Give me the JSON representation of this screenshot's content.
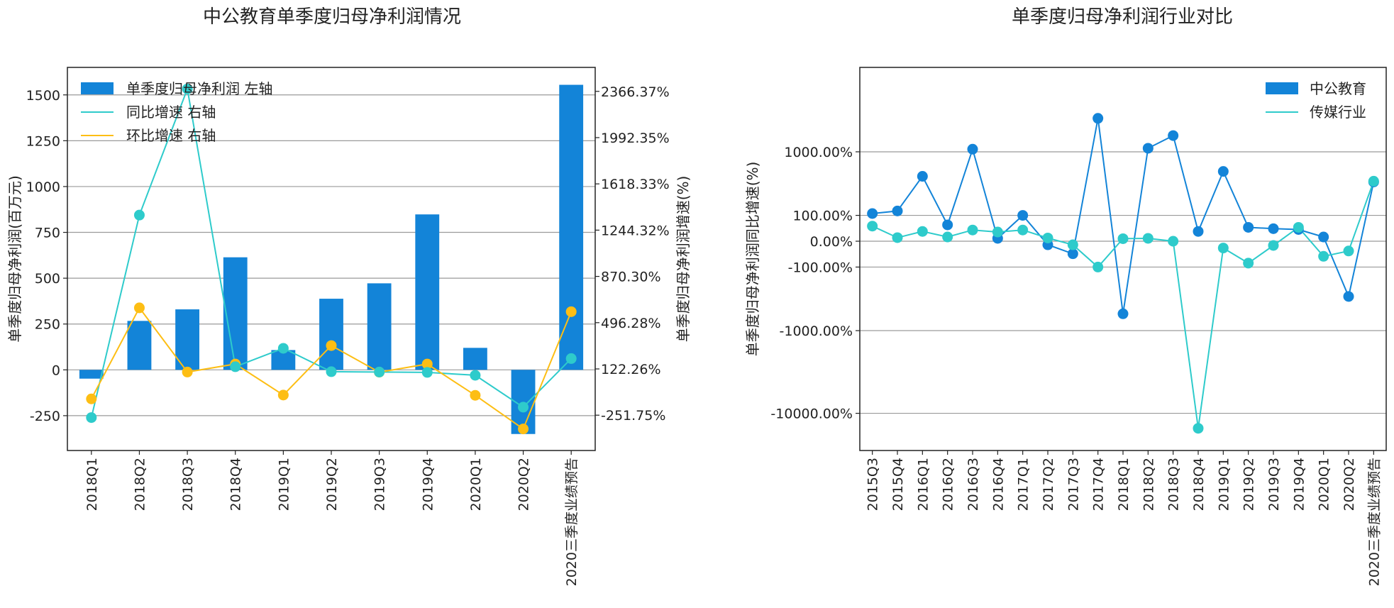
{
  "chart_data": [
    {
      "type": "bar",
      "title": "中公教育单季度归母净利润情况",
      "categories": [
        "2018Q1",
        "2018Q2",
        "2018Q3",
        "2018Q4",
        "2019Q1",
        "2019Q2",
        "2019Q3",
        "2019Q4",
        "2020Q1",
        "2020Q2",
        "2020三季度业绩预告"
      ],
      "ylabel_left": "单季度归母净利润(百万元)",
      "ylabel_right": "单季度归母净利润增速(%)",
      "ylim_left": [
        -440,
        1650
      ],
      "ylim_right": [
        -537.3,
        2560.0
      ],
      "yticks_left": [
        1500,
        1250,
        1000,
        750,
        500,
        250,
        0,
        -250
      ],
      "yticks_right": [
        2366.37,
        1992.35,
        1618.33,
        1244.32,
        870.3,
        496.28,
        122.26,
        -251.75
      ],
      "yticks_right_labels": [
        "2366.37%",
        "1992.35%",
        "1618.33%",
        "1244.32%",
        "870.30%",
        "496.28%",
        "122.26%",
        "-251.75%"
      ],
      "grid": true,
      "legend_position": "top-left",
      "series": [
        {
          "name": "单季度归母净利润 左轴",
          "type": "bar",
          "axis": "left",
          "color": "#1384D8",
          "values": [
            -48,
            267,
            330,
            614,
            108,
            388,
            472,
            848,
            120,
            -350,
            1555
          ]
        },
        {
          "name": "同比增速 右轴",
          "type": "line",
          "axis": "right",
          "color": "#2ECBCB",
          "values": [
            -271,
            1366,
            2386,
            140,
            289,
            100,
            97,
            94,
            71,
            -187,
            206
          ]
        },
        {
          "name": "环比增速 右轴",
          "type": "line",
          "axis": "right",
          "color": "#FDBE14",
          "values": [
            -120,
            616,
            97,
            162,
            -89,
            311,
            96,
            162,
            -91,
            -363,
            585
          ]
        }
      ]
    },
    {
      "type": "line",
      "title": "单季度归母净利润行业对比",
      "categories": [
        "2015Q3",
        "2015Q4",
        "2016Q1",
        "2016Q2",
        "2016Q3",
        "2016Q4",
        "2017Q1",
        "2017Q2",
        "2017Q3",
        "2017Q4",
        "2018Q1",
        "2018Q2",
        "2018Q3",
        "2018Q4",
        "2019Q1",
        "2019Q2",
        "2019Q3",
        "2019Q4",
        "2020Q1",
        "2020Q2",
        "2020三季度业绩预告"
      ],
      "ylabel": "单季度归母净利润同比增速(%)",
      "yscale": "symlog",
      "yticks": [
        1000,
        100,
        0,
        -100,
        -1000,
        -10000
      ],
      "ytick_labels": [
        "1000.00%",
        "100.00%",
        "0.00%",
        "-100.00%",
        "-1000.00%",
        "-10000.00%"
      ],
      "grid": true,
      "legend_position": "top-right",
      "series": [
        {
          "name": "中公教育",
          "color": "#1384D8",
          "values": [
            110,
            125,
            470,
            55,
            1080,
            8,
            100,
            -10,
            -40,
            2600,
            -600,
            1110,
            1600,
            30,
            550,
            45,
            40,
            37,
            12,
            -340,
            390
          ]
        },
        {
          "name": "传媒行业",
          "color": "#2ECBCB",
          "values": [
            50,
            10,
            30,
            12,
            35,
            28,
            35,
            9,
            -10,
            -100,
            7,
            8,
            0,
            -15000,
            -20,
            -80,
            -12,
            45,
            -50,
            -30,
            400
          ]
        }
      ]
    }
  ]
}
